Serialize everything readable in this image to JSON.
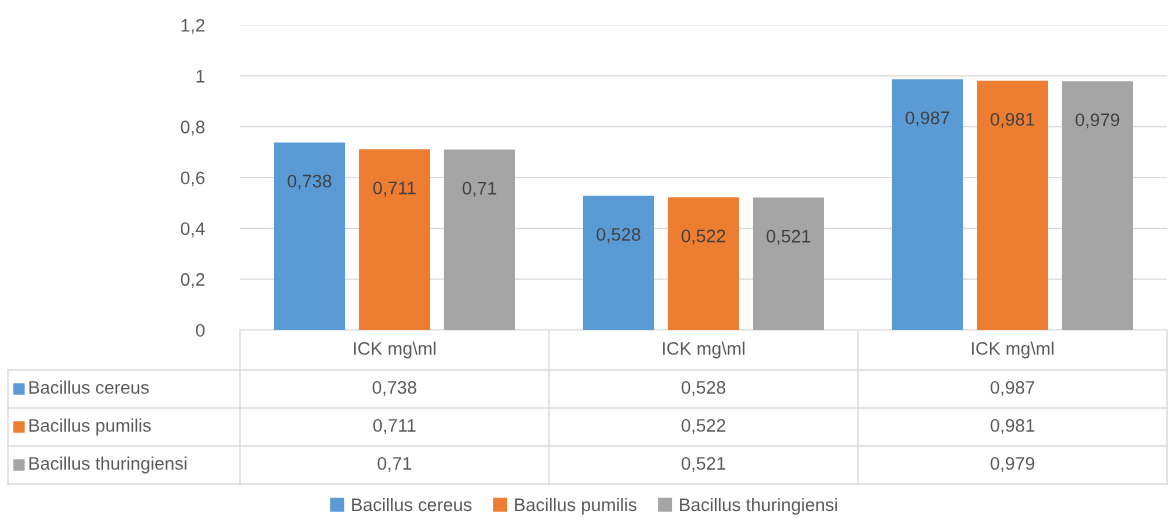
{
  "chart_data": {
    "type": "bar",
    "categories": [
      "ICK mg\\ml",
      "ICK mg\\ml",
      "ICK mg\\ml"
    ],
    "series": [
      {
        "name": "Bacillus cereus",
        "color": "#5b9bd5",
        "values": [
          0.738,
          0.528,
          0.987
        ],
        "value_labels": [
          "0,738",
          "0,528",
          "0,987"
        ]
      },
      {
        "name": "Bacillus pumilis",
        "color": "#ed7d31",
        "values": [
          0.711,
          0.522,
          0.981
        ],
        "value_labels": [
          "0,711",
          "0,522",
          "0,981"
        ]
      },
      {
        "name": "Bacillus thuringiensi",
        "color": "#a5a5a5",
        "values": [
          0.71,
          0.521,
          0.979
        ],
        "value_labels": [
          "0,71",
          "0,521",
          "0,979"
        ]
      }
    ],
    "ylim": [
      0,
      1.2
    ],
    "yticks": [
      0,
      {
        "value": 0.2,
        "label": "0,2"
      },
      {
        "value": 0.4,
        "label": "0,4"
      },
      {
        "value": 0.6,
        "label": "0,6"
      },
      {
        "value": 0.8,
        "label": "0,8"
      },
      1,
      {
        "value": 1.2,
        "label": "1,2"
      }
    ],
    "grid": "y",
    "legend": "bottom"
  }
}
